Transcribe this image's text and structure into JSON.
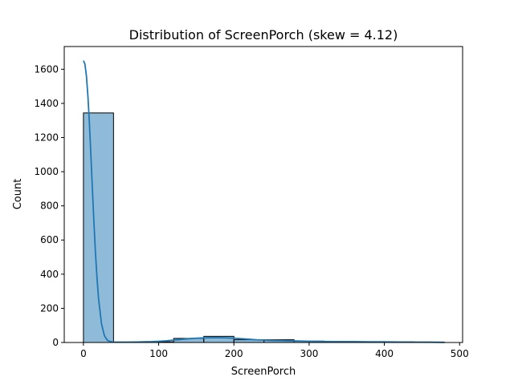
{
  "chart_data": {
    "type": "bar",
    "title": "Distribution of ScreenPorch (skew = 4.12)",
    "xlabel": "ScreenPorch",
    "ylabel": "Count",
    "xlim": [
      -25.5,
      504
    ],
    "ylim": [
      0,
      1733
    ],
    "x_ticks": [
      0,
      100,
      200,
      300,
      400,
      500
    ],
    "y_ticks": [
      0,
      200,
      400,
      600,
      800,
      1000,
      1200,
      1400,
      1600
    ],
    "bin_edges": [
      0,
      40,
      80,
      120,
      160,
      200,
      240,
      280,
      320,
      360,
      400,
      440,
      480
    ],
    "counts": [
      1344,
      0,
      4,
      24,
      36,
      16,
      16,
      8,
      3,
      4,
      4,
      1
    ],
    "kde": {
      "x": [
        0,
        2,
        4,
        6,
        8,
        10,
        12,
        14,
        16,
        18,
        20,
        24,
        28,
        32,
        36,
        40,
        44,
        50,
        60,
        70,
        80,
        90,
        100,
        110,
        120,
        130,
        140,
        150,
        160,
        170,
        180,
        190,
        200,
        210,
        220,
        230,
        240,
        250,
        260,
        270,
        280,
        290,
        300,
        320,
        340,
        360,
        380,
        400,
        420,
        440,
        460,
        480
      ],
      "y": [
        1650,
        1630,
        1560,
        1440,
        1280,
        1090,
        890,
        700,
        525,
        380,
        262,
        110,
        38,
        12,
        5,
        3,
        2,
        2,
        2,
        3,
        4,
        5,
        7,
        10,
        14,
        18,
        22,
        25,
        27,
        28,
        28,
        27,
        25,
        22,
        19,
        16,
        14,
        12,
        11,
        10,
        9,
        8,
        7,
        6,
        5,
        5,
        4,
        4,
        3,
        2,
        2,
        1
      ]
    },
    "colors": {
      "bar_fill": "#1f77b4",
      "bar_fill_opacity": 0.5,
      "bar_edge": "#000000",
      "kde_line": "#1f77b4"
    },
    "grid": false,
    "legend": "none"
  }
}
